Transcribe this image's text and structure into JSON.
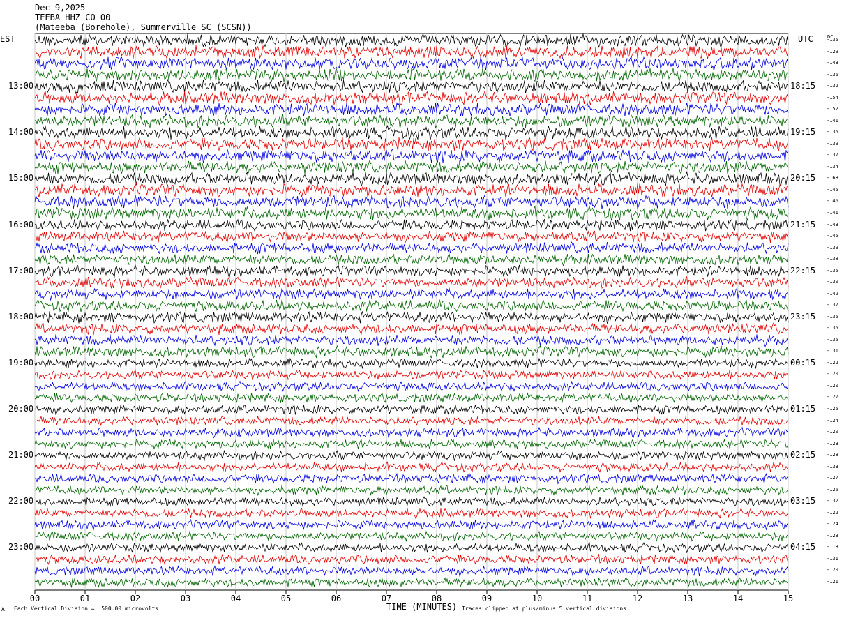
{
  "header": {
    "date": "Dec 9,2025",
    "station": "TEEBA HHZ CO 00",
    "location": "(Mateeba (Borehole), Summerville SC (SCSN))"
  },
  "left_zone_label": "EST",
  "right_zone_label": "UTC",
  "dc_label": "DC",
  "footer": {
    "scale_note": "Each Vertical Division =  500.00 microvolts",
    "clip_note": "Traces clipped at plus/minus 5 vertical divisions",
    "mark": "A"
  },
  "chart_data": {
    "type": "line",
    "xlabel": "TIME (MINUTES)",
    "xlim": [
      0,
      15
    ],
    "x_tick_labels": [
      "00",
      "01",
      "02",
      "03",
      "04",
      "05",
      "06",
      "07",
      "08",
      "09",
      "10",
      "11",
      "12",
      "13",
      "14",
      "15"
    ],
    "trace_colors": [
      "#000000",
      "#e00000",
      "#0000e0",
      "#006400"
    ],
    "left_hour_labels": [
      "13:00",
      "14:00",
      "15:00",
      "16:00",
      "17:00",
      "18:00",
      "19:00",
      "20:00",
      "21:00",
      "22:00",
      "23:00"
    ],
    "right_hour_labels": [
      "18:15",
      "19:15",
      "20:15",
      "21:15",
      "22:15",
      "23:15",
      "00:15",
      "01:15",
      "02:15",
      "03:15",
      "04:15"
    ],
    "dc_offsets": [
      "-135",
      "-129",
      "-143",
      "-136",
      "-132",
      "-154",
      "-152",
      "-141",
      "-135",
      "-139",
      "-137",
      "-134",
      "-168",
      "-145",
      "-146",
      "-141",
      "-143",
      "-145",
      "-139",
      "-138",
      "-135",
      "-130",
      "-142",
      "-137",
      "-135",
      "-135",
      "-135",
      "-131",
      "-122",
      "-120",
      "-120",
      "-127",
      "-125",
      "-124",
      "-120",
      "-123",
      "-128",
      "-133",
      "-127",
      "-126",
      "-132",
      "-122",
      "-124",
      "-123",
      "-118",
      "-131",
      "-120",
      "-121"
    ],
    "trace_count": 48
  }
}
